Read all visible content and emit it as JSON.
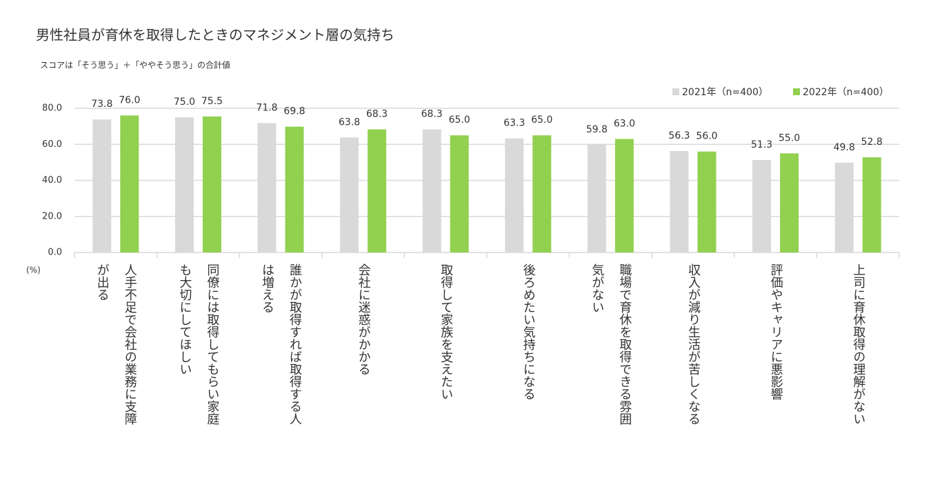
{
  "chart_data": {
    "type": "bar",
    "title": "男性社員が育休を取得したときのマネジメント層の気持ち",
    "subtitle": "スコアは「そう思う」＋「ややそう思う」の合計値",
    "unit_label": "(%)",
    "categories": [
      "人手不足で会社の業務に支障が出る",
      "同僚には取得してもらい家庭も大切にしてほしい",
      "誰かが取得すれば取得する人は増える",
      "会社に迷惑がかかる",
      "取得して家族を支えたい",
      "後ろめたい気持ちになる",
      "職場で育休を取得できる雰囲気がない",
      "収入が減り生活が苦しくなる",
      "評価やキャリアに悪影響",
      "上司に育休取得の理解がない"
    ],
    "series": [
      {
        "name": "2021年（n=400）",
        "color": "#d9d9d9",
        "values": [
          73.8,
          75.0,
          71.8,
          63.8,
          68.3,
          63.3,
          59.8,
          56.3,
          51.3,
          49.8
        ],
        "value_labels": [
          "73.8",
          "75.0",
          "71.8",
          "63.8",
          "68.3",
          "63.3",
          "59.8",
          "56.3",
          "51.3",
          "49.8"
        ]
      },
      {
        "name": "2022年（n=400）",
        "color": "#92d050",
        "values": [
          76.0,
          75.5,
          69.8,
          68.3,
          65.0,
          65.0,
          63.0,
          56.0,
          55.0,
          52.8
        ],
        "value_labels": [
          "76.0",
          "75.5",
          "69.8",
          "68.3",
          "65.0",
          "65.0",
          "63.0",
          "56.0",
          "55.0",
          "52.8"
        ]
      }
    ],
    "ylim": [
      0,
      80
    ],
    "yticks": [
      {
        "value": 0,
        "label": "0.0"
      },
      {
        "value": 20,
        "label": "20.0"
      },
      {
        "value": 40,
        "label": "40.0"
      },
      {
        "value": 60,
        "label": "60.0"
      },
      {
        "value": 80,
        "label": "80.0"
      }
    ],
    "grid": true,
    "legend": "top-right"
  }
}
